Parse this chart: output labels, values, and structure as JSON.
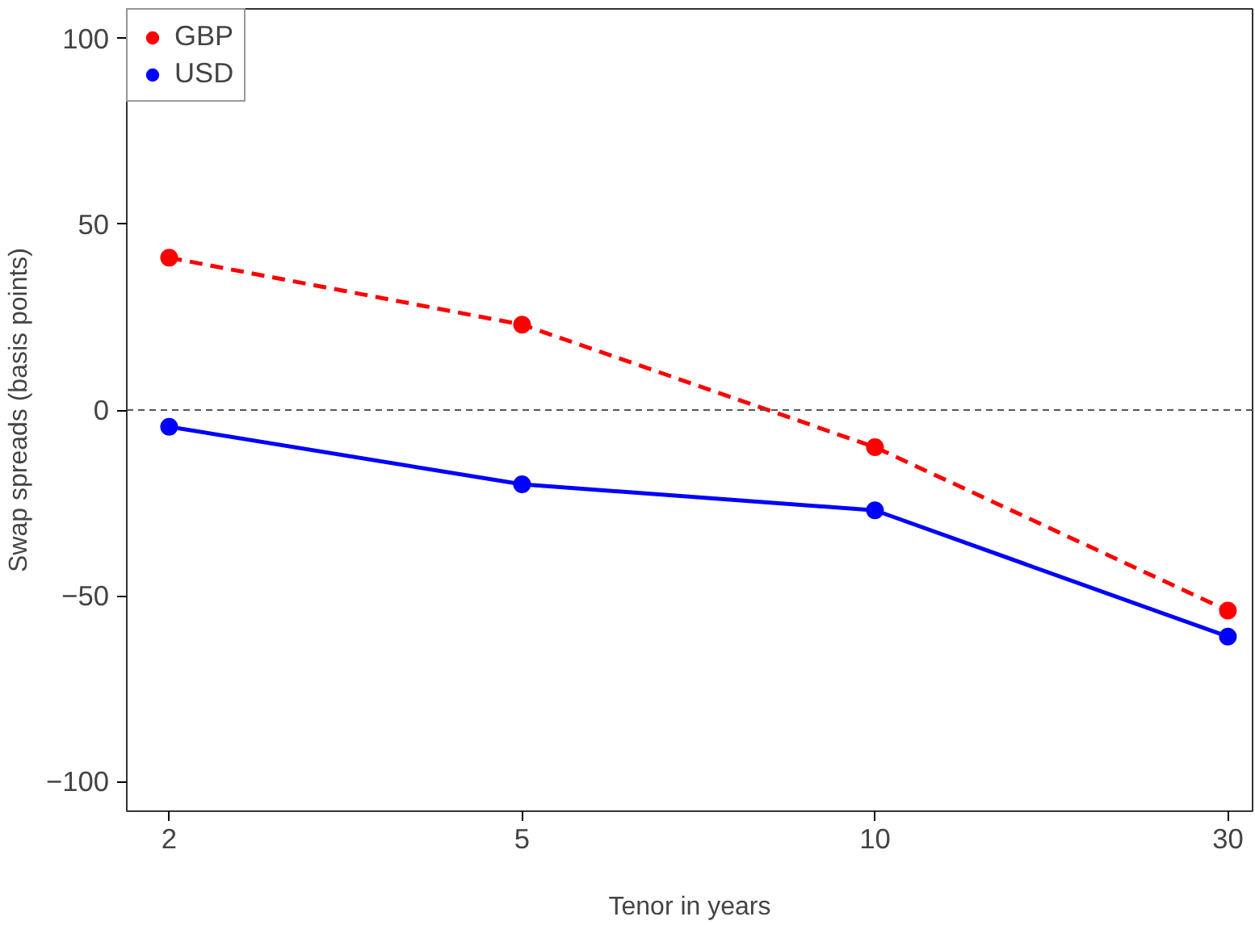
{
  "chart_data": {
    "type": "line",
    "xlabel": "Tenor in years",
    "ylabel": "Swap spreads (basis points)",
    "categories": [
      "2",
      "5",
      "10",
      "30"
    ],
    "series": [
      {
        "name": "GBP",
        "color": "#ff0000",
        "values": [
          41,
          23,
          -10,
          -54
        ],
        "line_style": "dashed"
      },
      {
        "name": "USD",
        "color": "#0000ff",
        "values": [
          -4.5,
          -20,
          -27,
          -61
        ],
        "line_style": "solid"
      }
    ],
    "ylim": [
      -108,
      108
    ],
    "yticks": [
      -100,
      -50,
      0,
      50,
      100
    ],
    "ref_lines": [
      {
        "axis": "y",
        "value": 0,
        "color": "#555555",
        "line_style": "dashed"
      }
    ],
    "legend": "top left",
    "grid": false,
    "marker": "circle"
  }
}
